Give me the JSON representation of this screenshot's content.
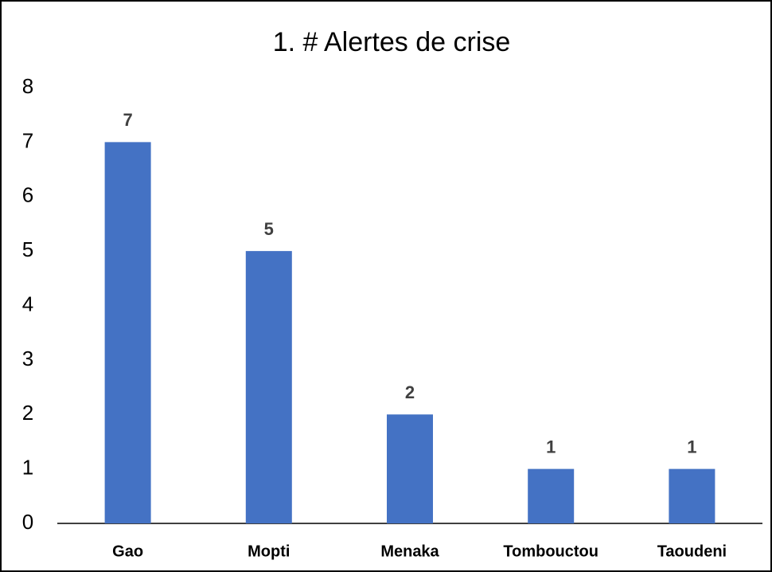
{
  "chart_data": {
    "type": "bar",
    "title": "1. # Alertes de crise",
    "categories": [
      "Gao",
      "Mopti",
      "Menaka",
      "Tombouctou",
      "Taoudeni"
    ],
    "values": [
      7,
      5,
      2,
      1,
      1
    ],
    "color": "#4472c4",
    "ylim": [
      0,
      8
    ],
    "yticks": [
      0,
      1,
      2,
      3,
      4,
      5,
      6,
      7,
      8
    ],
    "grid": false
  }
}
